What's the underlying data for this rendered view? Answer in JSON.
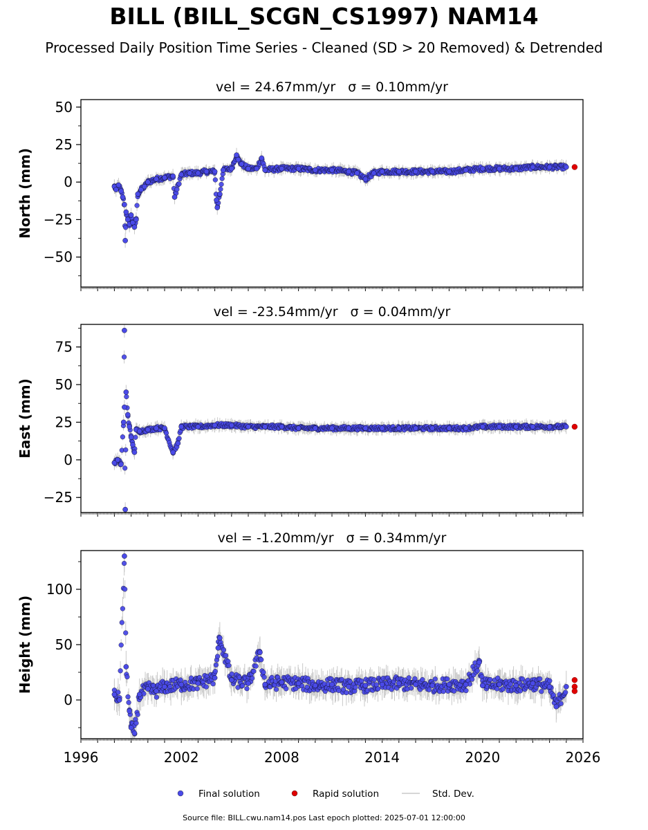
{
  "title": "BILL (BILL_SCGN_CS1997) NAM14",
  "subtitle": "Processed Daily Position Time Series - Cleaned (SD > 20 Removed) & Detrended",
  "footer": "Source file: BILL.cwu.nam14.pos  Last epoch plotted: 2025-07-01 12:00:00",
  "chart_data": {
    "type": "scatter",
    "x_axis": {
      "label": "",
      "range": [
        1996,
        2026
      ],
      "ticks": [
        1996,
        2002,
        2008,
        2014,
        2020,
        2026
      ]
    },
    "legend": {
      "placement": "bottom",
      "entries": [
        {
          "label": "Final solution",
          "color": "#4a4ae8",
          "marker": "dot"
        },
        {
          "label": "Rapid solution",
          "color": "#e00000",
          "marker": "dot"
        },
        {
          "label": "Std. Dev.",
          "color": "#c8c8c8",
          "marker": "line"
        }
      ]
    },
    "colors": {
      "final": "#4a4ae8",
      "rapid": "#e00000",
      "stddev": "#c8c8c8",
      "edge": "#000000"
    },
    "panels": [
      {
        "id": "north",
        "ylabel": "North (mm)",
        "annotation_vel": "vel = 24.67mm/yr",
        "annotation_sigma": "σ = 0.10mm/yr",
        "ylim": [
          -70,
          55
        ],
        "yticks": [
          -50,
          -25,
          0,
          25,
          50
        ],
        "ytick_labels": [
          "−50",
          "−25",
          "0",
          "25",
          "50"
        ],
        "series": [
          {
            "name": "Final solution",
            "points": [
              [
                1998.0,
                -3
              ],
              [
                1998.1,
                -5
              ],
              [
                1998.25,
                -2
              ],
              [
                1998.4,
                -6
              ],
              [
                1998.5,
                -10
              ],
              [
                1998.6,
                -15
              ],
              [
                1998.7,
                -20
              ],
              [
                1998.8,
                -25
              ],
              [
                1998.9,
                -28
              ],
              [
                1999.0,
                -22
              ],
              [
                1999.1,
                -27
              ],
              [
                1999.2,
                -30
              ],
              [
                1999.3,
                -25
              ],
              [
                1998.65,
                -39
              ],
              [
                1999.4,
                -8
              ],
              [
                1999.6,
                -5
              ],
              [
                1999.8,
                -3
              ],
              [
                2000.0,
                0
              ],
              [
                2000.5,
                2
              ],
              [
                2001.0,
                3
              ],
              [
                2001.5,
                4
              ],
              [
                2002.0,
                5
              ],
              [
                2001.6,
                -10
              ],
              [
                2002.5,
                6
              ],
              [
                2003.0,
                6
              ],
              [
                2003.5,
                7
              ],
              [
                2004.0,
                7
              ],
              [
                2004.1,
                -12
              ],
              [
                2004.15,
                -17
              ],
              [
                2004.3,
                -8
              ],
              [
                2004.5,
                8
              ],
              [
                2005.0,
                9
              ],
              [
                2005.3,
                18
              ],
              [
                2005.4,
                15
              ],
              [
                2005.6,
                12
              ],
              [
                2006.0,
                9
              ],
              [
                2006.5,
                9
              ],
              [
                2006.8,
                16
              ],
              [
                2007.0,
                8
              ],
              [
                2008.0,
                9
              ],
              [
                2009.0,
                9
              ],
              [
                2010.0,
                8
              ],
              [
                2011.0,
                8
              ],
              [
                2012.0,
                7
              ],
              [
                2012.5,
                6
              ],
              [
                2013.0,
                2
              ],
              [
                2013.5,
                6
              ],
              [
                2014.0,
                7
              ],
              [
                2015.0,
                7
              ],
              [
                2016.0,
                7
              ],
              [
                2017.0,
                7
              ],
              [
                2018.0,
                7
              ],
              [
                2019.0,
                8
              ],
              [
                2020.0,
                9
              ],
              [
                2021.0,
                9
              ],
              [
                2022.0,
                9
              ],
              [
                2023.0,
                10
              ],
              [
                2024.0,
                10
              ],
              [
                2025.0,
                10
              ]
            ]
          },
          {
            "name": "Rapid solution",
            "points": [
              [
                2025.5,
                10
              ]
            ]
          }
        ]
      },
      {
        "id": "east",
        "ylabel": "East (mm)",
        "annotation_vel": "vel = -23.54mm/yr",
        "annotation_sigma": "σ = 0.04mm/yr",
        "ylim": [
          -35,
          90
        ],
        "yticks": [
          -25,
          0,
          25,
          50,
          75
        ],
        "ytick_labels": [
          "−25",
          "0",
          "25",
          "50",
          "75"
        ],
        "series": [
          {
            "name": "Final solution",
            "points": [
              [
                1998.0,
                -2
              ],
              [
                1998.2,
                0
              ],
              [
                1998.4,
                -3
              ],
              [
                1998.6,
                86
              ],
              [
                1998.55,
                25
              ],
              [
                1998.6,
                35
              ],
              [
                1998.7,
                45
              ],
              [
                1998.8,
                30
              ],
              [
                1998.9,
                22
              ],
              [
                1999.0,
                15
              ],
              [
                1999.1,
                10
              ],
              [
                1999.2,
                5
              ],
              [
                1999.3,
                20
              ],
              [
                1998.65,
                -33
              ],
              [
                1999.5,
                19
              ],
              [
                2000.0,
                20
              ],
              [
                2000.5,
                21
              ],
              [
                2001.0,
                21
              ],
              [
                2001.5,
                5
              ],
              [
                2001.8,
                11
              ],
              [
                2002.0,
                22
              ],
              [
                2003.0,
                22
              ],
              [
                2004.0,
                23
              ],
              [
                2005.0,
                23
              ],
              [
                2006.0,
                22
              ],
              [
                2007.0,
                22
              ],
              [
                2008.0,
                22
              ],
              [
                2009.0,
                21
              ],
              [
                2010.0,
                21
              ],
              [
                2011.0,
                21
              ],
              [
                2012.0,
                21
              ],
              [
                2013.0,
                21
              ],
              [
                2014.0,
                21
              ],
              [
                2015.0,
                21
              ],
              [
                2016.0,
                21
              ],
              [
                2017.0,
                21
              ],
              [
                2018.0,
                21
              ],
              [
                2019.0,
                21
              ],
              [
                2020.0,
                22
              ],
              [
                2021.0,
                22
              ],
              [
                2022.0,
                22
              ],
              [
                2023.0,
                22
              ],
              [
                2024.0,
                22
              ],
              [
                2025.0,
                22
              ]
            ]
          },
          {
            "name": "Rapid solution",
            "points": [
              [
                2025.5,
                22
              ]
            ]
          }
        ]
      },
      {
        "id": "height",
        "ylabel": "Height (mm)",
        "annotation_vel": "vel = -1.20mm/yr",
        "annotation_sigma": "σ = 0.34mm/yr",
        "ylim": [
          -35,
          135
        ],
        "yticks": [
          0,
          50,
          100
        ],
        "ytick_labels": [
          "0",
          "50",
          "100"
        ],
        "series": [
          {
            "name": "Final solution",
            "points": [
              [
                1998.0,
                5
              ],
              [
                1998.3,
                0
              ],
              [
                1998.6,
                130
              ],
              [
                1998.7,
                30
              ],
              [
                1998.9,
                -10
              ],
              [
                1999.0,
                -25
              ],
              [
                1999.2,
                -30
              ],
              [
                1999.5,
                5
              ],
              [
                2000.0,
                10
              ],
              [
                2000.5,
                8
              ],
              [
                2001.0,
                12
              ],
              [
                2002.0,
                14
              ],
              [
                2003.0,
                15
              ],
              [
                2004.0,
                20
              ],
              [
                2004.2,
                47
              ],
              [
                2004.3,
                56
              ],
              [
                2005.0,
                18
              ],
              [
                2006.0,
                15
              ],
              [
                2006.7,
                43
              ],
              [
                2007.0,
                14
              ],
              [
                2008.0,
                16
              ],
              [
                2009.0,
                15
              ],
              [
                2010.0,
                13
              ],
              [
                2011.0,
                14
              ],
              [
                2012.0,
                12
              ],
              [
                2013.0,
                13
              ],
              [
                2014.0,
                14
              ],
              [
                2015.0,
                15
              ],
              [
                2016.0,
                14
              ],
              [
                2017.0,
                13
              ],
              [
                2018.0,
                14
              ],
              [
                2019.0,
                14
              ],
              [
                2019.8,
                34
              ],
              [
                2020.0,
                13
              ],
              [
                2021.0,
                14
              ],
              [
                2022.0,
                13
              ],
              [
                2023.0,
                15
              ],
              [
                2024.0,
                12
              ],
              [
                2024.4,
                -6
              ],
              [
                2025.0,
                12
              ]
            ]
          },
          {
            "name": "Rapid solution",
            "points": [
              [
                2025.5,
                12
              ],
              [
                2025.5,
                18
              ],
              [
                2025.5,
                8
              ]
            ]
          }
        ]
      }
    ]
  }
}
